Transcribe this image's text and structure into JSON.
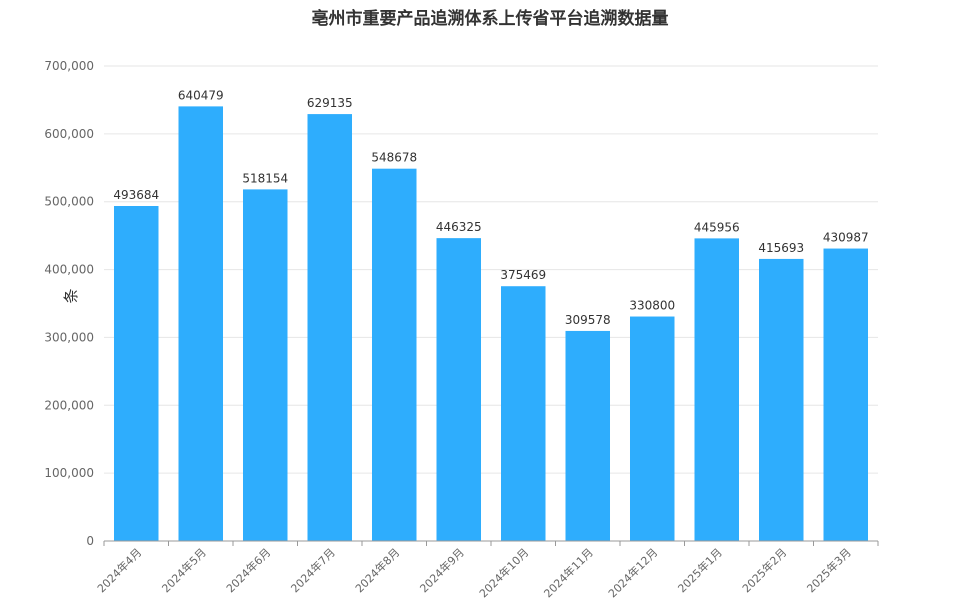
{
  "chart_data": {
    "type": "bar",
    "title": "亳州市重要产品追溯体系上传省平台追溯数据量",
    "xlabel": "",
    "ylabel": "条",
    "ylim": [
      0,
      700000
    ],
    "yticks": [
      0,
      100000,
      200000,
      300000,
      400000,
      500000,
      600000,
      700000
    ],
    "ytick_labels": [
      "0",
      "100,000",
      "200,000",
      "300,000",
      "400,000",
      "500,000",
      "600,000",
      "700,000"
    ],
    "grid": true,
    "legend": "none",
    "bar_color": "#2eadfd",
    "categories": [
      "2024年4月",
      "2024年5月",
      "2024年6月",
      "2024年7月",
      "2024年8月",
      "2024年9月",
      "2024年10月",
      "2024年11月",
      "2024年12月",
      "2025年1月",
      "2025年2月",
      "2025年3月"
    ],
    "values": [
      493684,
      640479,
      518154,
      629135,
      548678,
      446325,
      375469,
      309578,
      330800,
      445956,
      415693,
      430987
    ]
  }
}
